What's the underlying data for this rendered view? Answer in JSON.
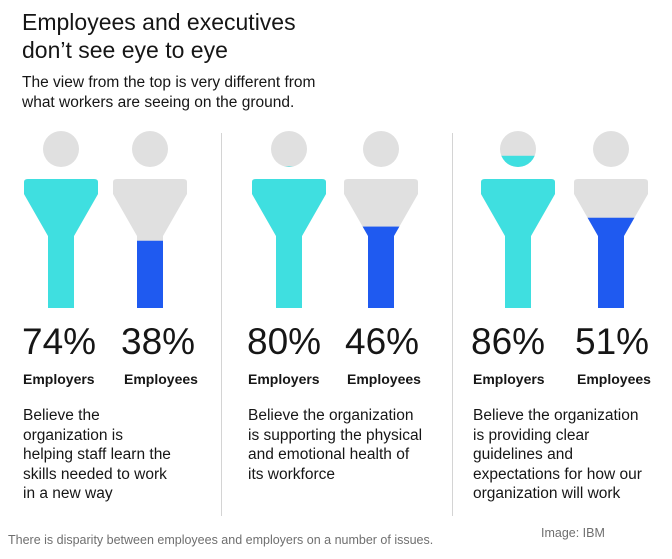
{
  "header": {
    "title_line1": "Employees and executives",
    "title_line2": "don’t see eye to eye",
    "subtitle_line1": "The view from the top is very different from",
    "subtitle_line2": "what workers are seeing on the ground."
  },
  "footer": {
    "caption": "There is disparity between employees and employers on a number of issues.",
    "credit": "Image: IBM"
  },
  "colors": {
    "employers": "#3fdfe0",
    "employees": "#1f5af0",
    "empty": "#e0e0e0",
    "text": "#161616",
    "caption": "#6f6f6f"
  },
  "chart_data": {
    "type": "bar",
    "unit": "%",
    "series": [
      {
        "name": "Employers",
        "values": [
          74,
          80,
          86
        ]
      },
      {
        "name": "Employees",
        "values": [
          38,
          46,
          51
        ]
      }
    ],
    "groups": [
      {
        "employers_value": "74%",
        "employees_value": "38%",
        "employers_label": "Employers",
        "employees_label": "Employees",
        "description": [
          "Believe the",
          "organization is",
          "helping staff learn the",
          "skills needed to work",
          "in a new way"
        ]
      },
      {
        "employers_value": "80%",
        "employees_value": "46%",
        "employers_label": "Employers",
        "employees_label": "Employees",
        "description": [
          "Believe the organization",
          "is supporting the physical",
          "and emotional health of",
          "its workforce"
        ]
      },
      {
        "employers_value": "86%",
        "employees_value": "51%",
        "employers_label": "Employers",
        "employees_label": "Employees",
        "description": [
          "Believe the organization",
          "is providing clear",
          "guidelines and",
          "expectations for how our",
          "organization will work"
        ]
      }
    ]
  }
}
